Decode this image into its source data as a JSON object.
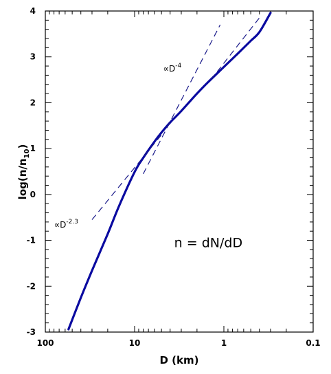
{
  "chart_data": {
    "type": "line",
    "title": "",
    "xlabel": "D (km)",
    "ylabel": "log(n/n10)",
    "ylabel_parts": {
      "main": "log(n/n",
      "sub": "10",
      "close": ")"
    },
    "x_scale": "log",
    "x_reversed": true,
    "xlim": [
      100,
      0.1
    ],
    "ylim": [
      -3,
      4
    ],
    "x_major_ticks": [
      100,
      10,
      1,
      0.1
    ],
    "x_tick_labels": [
      "100",
      "10",
      "1",
      "0.1"
    ],
    "y_major_ticks": [
      -3,
      -2,
      -1,
      0,
      1,
      2,
      3,
      4
    ],
    "y_tick_labels": [
      "-3",
      "-2",
      "-1",
      "0",
      "1",
      "2",
      "3",
      "4"
    ],
    "grid": false,
    "series": [
      {
        "style": "solid",
        "color": "#0a0aa0",
        "x": [
          55,
          40,
          30,
          20,
          15,
          10,
          8,
          6,
          5,
          4,
          3,
          2,
          1.5,
          1,
          0.7,
          0.5,
          0.4,
          0.3
        ],
        "y": [
          -2.94,
          -2.25,
          -1.66,
          -0.86,
          -0.26,
          0.49,
          0.8,
          1.15,
          1.35,
          1.57,
          1.82,
          2.2,
          2.45,
          2.78,
          3.07,
          3.35,
          3.54,
          3.96
        ]
      },
      {
        "style": "dashed",
        "color": "#1a1a8a",
        "x": [
          30,
          5
        ],
        "y": [
          -0.55,
          1.3
        ]
      },
      {
        "style": "dashed",
        "color": "#1a1a8a",
        "x": [
          8,
          1.1
        ],
        "y": [
          0.45,
          3.7
        ]
      },
      {
        "style": "dashed",
        "color": "#1a1a8a",
        "x": [
          1.4,
          0.4
        ],
        "y": [
          2.5,
          3.85
        ]
      }
    ],
    "annotations": [
      {
        "base": "∝D",
        "exp": "-2.3",
        "x": 80,
        "y": -0.72
      },
      {
        "base": "∝D",
        "exp": "-4",
        "x": 4.8,
        "y": 2.68
      },
      {
        "text": "n  =  dN/dD",
        "x": 3.6,
        "y": -1.15
      }
    ]
  }
}
